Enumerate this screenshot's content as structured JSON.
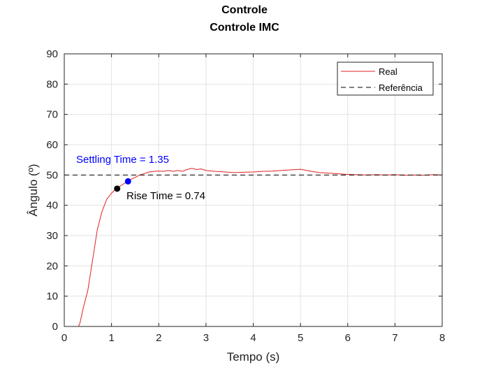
{
  "chart_data": {
    "type": "line",
    "title": "Controle",
    "subtitle": "Controle IMC",
    "xlabel": "Tempo (s)",
    "ylabel": "Ângulo (º)",
    "xlim": [
      0,
      8
    ],
    "ylim": [
      0,
      90
    ],
    "xticks": [
      0,
      1,
      2,
      3,
      4,
      5,
      6,
      7,
      8
    ],
    "yticks": [
      0,
      10,
      20,
      30,
      40,
      50,
      60,
      70,
      80,
      90
    ],
    "grid": true,
    "legend_position": "top-right",
    "series": [
      {
        "name": "Real",
        "color": "#e02020",
        "style": "solid",
        "x": [
          0,
          0.3,
          0.33,
          0.4,
          0.5,
          0.6,
          0.7,
          0.8,
          0.9,
          1.0,
          1.1,
          1.2,
          1.3,
          1.4,
          1.5,
          1.6,
          1.7,
          1.8,
          1.9,
          2.0,
          2.1,
          2.2,
          2.3,
          2.4,
          2.5,
          2.6,
          2.7,
          2.8,
          2.9,
          3.0,
          3.2,
          3.4,
          3.6,
          3.8,
          4.0,
          4.2,
          4.4,
          4.6,
          4.8,
          5.0,
          5.2,
          5.4,
          5.6,
          5.8,
          6.0,
          6.2,
          6.4,
          6.6,
          6.8,
          7.0,
          7.2,
          7.4,
          7.6,
          7.8,
          8.0
        ],
        "y": [
          0,
          0,
          1,
          6,
          12,
          22,
          32,
          38,
          42,
          44,
          45.5,
          46.5,
          47.5,
          48.5,
          49.2,
          50,
          50.5,
          51,
          51.2,
          51.3,
          51.2,
          51.5,
          51.2,
          51.5,
          51.2,
          51.8,
          52.2,
          51.8,
          52,
          51.5,
          51.2,
          51,
          50.8,
          50.9,
          51,
          51.2,
          51.3,
          51.5,
          51.7,
          51.9,
          51.3,
          50.8,
          50.6,
          50.4,
          50.2,
          50.1,
          50,
          50.1,
          50,
          50.1,
          49.9,
          50,
          49.9,
          50.1,
          50
        ]
      },
      {
        "name": "Referência",
        "color": "#000000",
        "style": "dashed",
        "x": [
          0,
          8
        ],
        "y": [
          50,
          50
        ]
      }
    ],
    "annotations": [
      {
        "text": "Settling Time = 1.35",
        "x": 1.35,
        "y": 47.9,
        "color": "#0000ff"
      },
      {
        "text": "Rise Time = 0.74",
        "x": 1.12,
        "y": 45.5,
        "color": "#000000"
      }
    ]
  }
}
